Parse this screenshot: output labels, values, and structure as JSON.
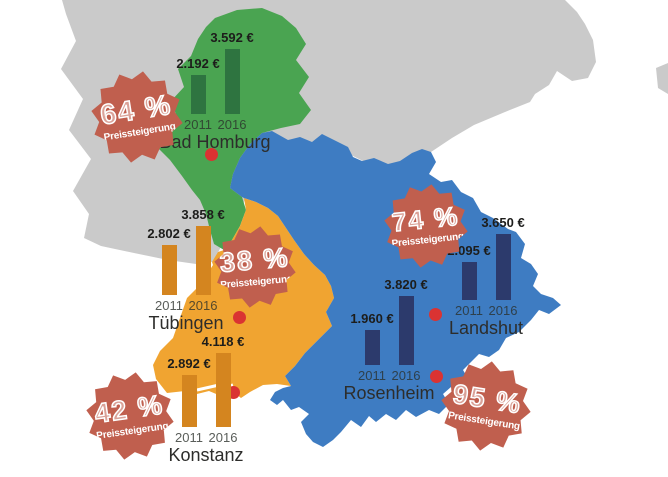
{
  "badge_word": "Preissteigerung",
  "chart_data": {
    "type": "bar",
    "categories": [
      "2011",
      "2016"
    ],
    "unit": "€",
    "annotation_word": "Preissteigerung",
    "legend_position": "none",
    "series": [
      {
        "name": "Bad Homburg",
        "values": [
          2192,
          3592
        ],
        "value_labels": [
          "2.192 €",
          "3.592 €"
        ],
        "increase_label": "64 %",
        "increase_pct": 64
      },
      {
        "name": "Tübingen",
        "values": [
          2802,
          3858
        ],
        "value_labels": [
          "2.802 €",
          "3.858 €"
        ],
        "increase_label": "38 %",
        "increase_pct": 38
      },
      {
        "name": "Konstanz",
        "values": [
          2892,
          4118
        ],
        "value_labels": [
          "2.892 €",
          "4.118 €"
        ],
        "increase_label": "42 %",
        "increase_pct": 42
      },
      {
        "name": "Landshut",
        "values": [
          2095,
          3650
        ],
        "value_labels": [
          "2.095 €",
          "3.650 €"
        ],
        "increase_label": "74 %",
        "increase_pct": 74
      },
      {
        "name": "Rosenheim",
        "values": [
          1960,
          3820
        ],
        "value_labels": [
          "1.960 €",
          "3.820 €"
        ],
        "increase_label": "95 %",
        "increase_pct": 95
      }
    ]
  },
  "map": {
    "regions": [
      {
        "name": "germany-outline",
        "color": "#cacaca"
      },
      {
        "name": "hessen",
        "color": "#4aa451"
      },
      {
        "name": "baden-wuerttemberg",
        "color": "#f0a431"
      },
      {
        "name": "bayern",
        "color": "#3e7cc2"
      }
    ],
    "marker_color": "#da3332",
    "badge_color": "#c05f4e",
    "background": "#ffffff"
  }
}
